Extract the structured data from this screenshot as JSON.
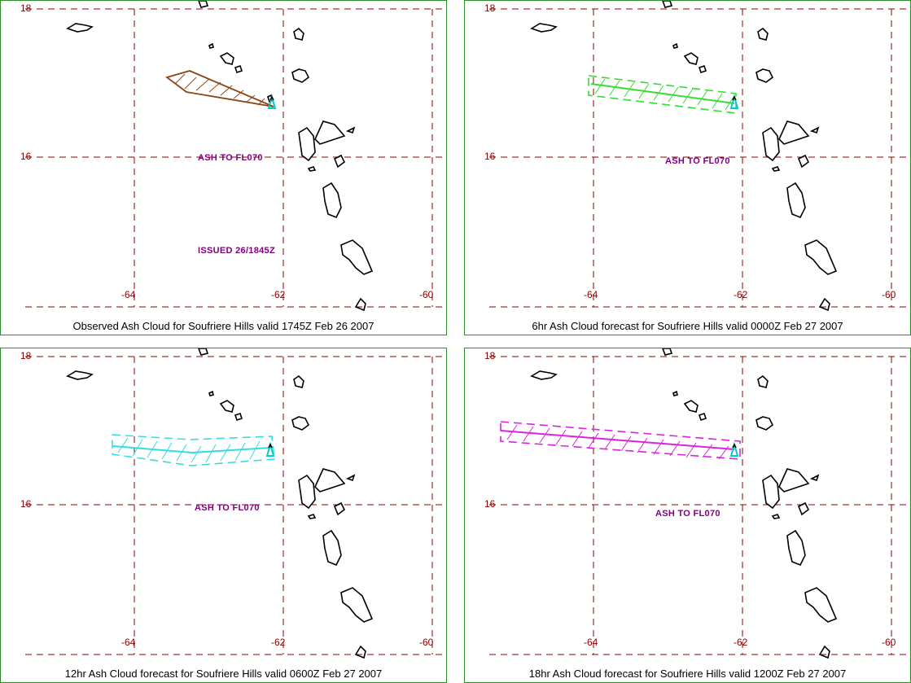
{
  "panels": [
    {
      "caption": "Observed Ash Cloud for Soufriere  Hills valid 1745Z Feb 26 2007",
      "ash_label": "ASH TO FL070",
      "issued_label": "ISSUED 26/1845Z",
      "cloud_color": "#8b4513",
      "cloud_kind": "observed"
    },
    {
      "caption": "6hr Ash Cloud forecast for Soufriere  Hills valid 0000Z Feb 27 2007",
      "ash_label": "ASH TO FL070",
      "cloud_color": "#33dd33",
      "cloud_kind": "forecast"
    },
    {
      "caption": "12hr Ash Cloud forecast for Soufriere  Hills valid 0600Z Feb 27 2007",
      "ash_label": "ASH TO FL070",
      "cloud_color": "#33dddd",
      "cloud_kind": "forecast"
    },
    {
      "caption": "18hr Ash Cloud forecast for Soufriere  Hills valid 1200Z Feb 27 2007",
      "ash_label": "ASH TO FL070",
      "cloud_color": "#dd22dd",
      "cloud_kind": "forecast"
    }
  ],
  "axes": {
    "lat_labels": [
      "18",
      "16"
    ],
    "lon_labels": [
      "-64",
      "-62",
      "-60"
    ]
  },
  "colors": {
    "grid": "#8b0000",
    "volcano": "#00cccc",
    "border": "#2e8b2e"
  }
}
